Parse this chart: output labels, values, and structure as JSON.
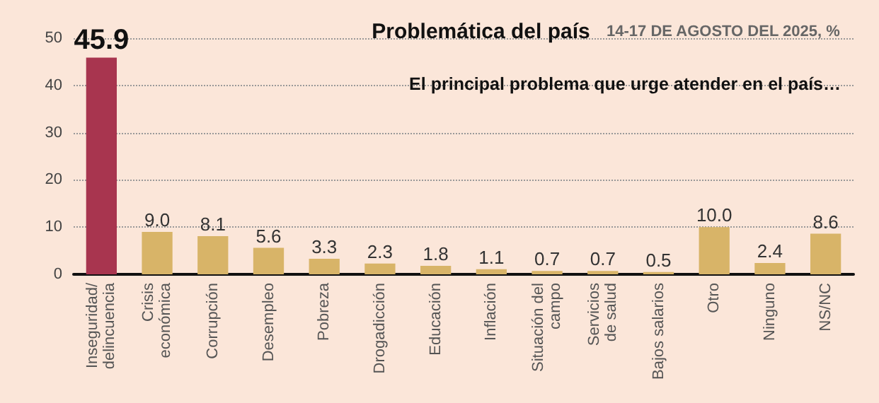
{
  "chart_data": {
    "type": "bar",
    "title": "Problemática del país",
    "subtitle": "El principal problema que urge atender en el país…",
    "annotations": [
      "14-17 DE AGOSTO DEL 2025, %"
    ],
    "categories": [
      "Inseguridad/\ndelincuencia",
      "Crisis\neconómica",
      "Corrupción",
      "Desempleo",
      "Pobreza",
      "Drogadicción",
      "Educación",
      "Inflación",
      "Situación del\ncampo",
      "Servicios\nde salud",
      "Bajos salarios",
      "Otro",
      "Ninguno",
      "NS/NC"
    ],
    "values": [
      45.9,
      9.0,
      8.1,
      5.6,
      3.3,
      2.3,
      1.8,
      1.1,
      0.7,
      0.7,
      0.5,
      10.0,
      2.4,
      8.6
    ],
    "colors": [
      "#a8354f",
      "#d8b468",
      "#d8b468",
      "#d8b468",
      "#d8b468",
      "#d8b468",
      "#d8b468",
      "#d8b468",
      "#d8b468",
      "#d8b468",
      "#d8b468",
      "#d8b468",
      "#d8b468",
      "#d8b468"
    ],
    "value_labels": [
      "45.9",
      "9.0",
      "8.1",
      "5.6",
      "3.3",
      "2.3",
      "1.8",
      "1.1",
      "0.7",
      "0.7",
      "0.5",
      "10.0",
      "2.4",
      "8.6"
    ],
    "ylim": [
      0,
      50
    ],
    "yticks": [
      0,
      10,
      20,
      30,
      40,
      50
    ],
    "grid": "y"
  }
}
